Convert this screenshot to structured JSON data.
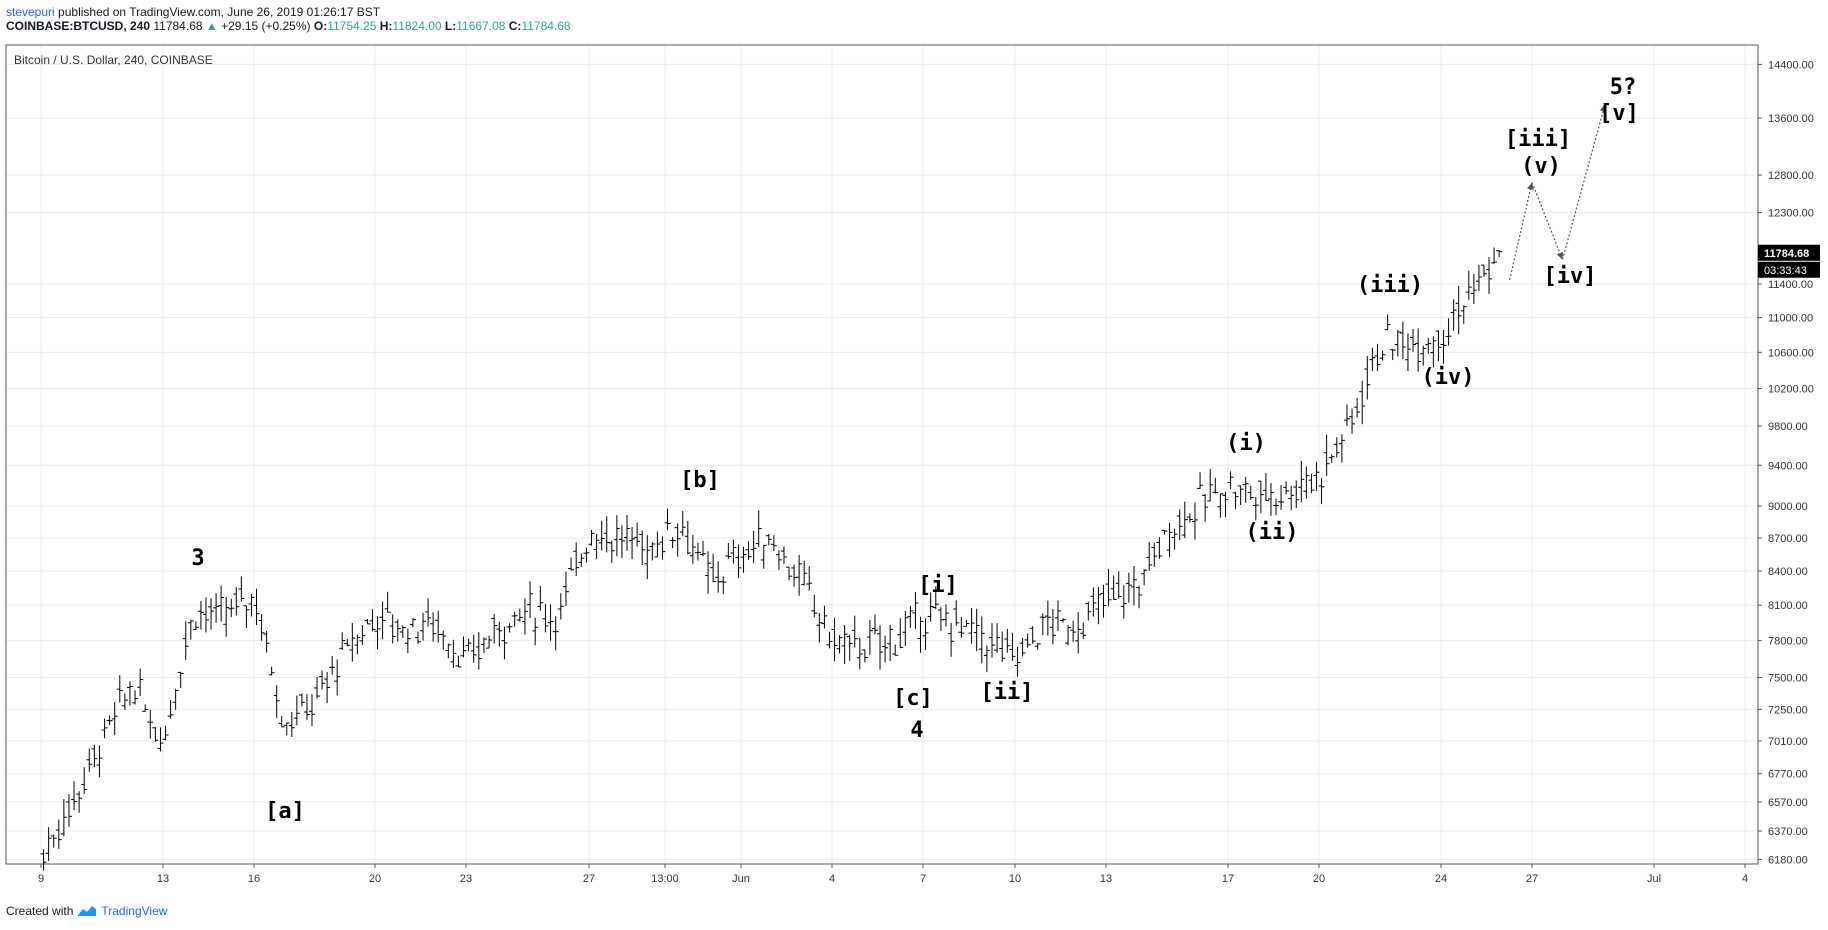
{
  "header": {
    "author": "stevepuri",
    "published": "published on TradingView.com, June 26, 2019 01:26:17 BST",
    "symbol": "COINBASE:BTCUSD, 240",
    "last": "11784.68",
    "change": "+29.15 (+0.25%)",
    "o_label": "O:",
    "o_val": "11754.25",
    "h_label": "H:",
    "h_val": "11824.00",
    "l_label": "L:",
    "l_val": "11667.08",
    "c_label": "C:",
    "c_val": "11784.68"
  },
  "chart_data": {
    "type": "ohlc-bar",
    "title": "Bitcoin / U.S. Dollar, 240, COINBASE",
    "y_ticks": [
      6180,
      6370,
      6570,
      6770,
      7010,
      7250,
      7500,
      7800,
      8100,
      8400,
      8700,
      9000,
      9400,
      9800,
      10200,
      10600,
      11000,
      11400,
      12300,
      12800,
      13600,
      14400
    ],
    "y_range": [
      6150,
      14700
    ],
    "y_scale": "log",
    "x_ticks": [
      "9",
      "13",
      "16",
      "20",
      "23",
      "27",
      "13:00",
      "Jun",
      "4",
      "7",
      "10",
      "13",
      "17",
      "20",
      "24",
      "27",
      "Jul",
      "4"
    ],
    "last_price_label": "11784.68",
    "countdown_label": "03:33:43",
    "anchors": [
      {
        "date": "May 9",
        "price": 6180
      },
      {
        "date": "May 10",
        "price": 6550
      },
      {
        "date": "May 11",
        "price": 7000
      },
      {
        "date": "May 12",
        "price": 7450
      },
      {
        "date": "May 13",
        "price": 7000
      },
      {
        "date": "May 14",
        "price": 8050
      },
      {
        "date": "May 15",
        "price": 8000
      },
      {
        "date": "May 16",
        "price": 8200
      },
      {
        "date": "May 17",
        "price": 7150
      },
      {
        "date": "May 18",
        "price": 7300
      },
      {
        "date": "May 19",
        "price": 7700
      },
      {
        "date": "May 20",
        "price": 8000
      },
      {
        "date": "May 21",
        "price": 7900
      },
      {
        "date": "May 22",
        "price": 7950
      },
      {
        "date": "May 23",
        "price": 7600
      },
      {
        "date": "May 24",
        "price": 7900
      },
      {
        "date": "May 25",
        "price": 8050
      },
      {
        "date": "May 26",
        "price": 8000
      },
      {
        "date": "May 27",
        "price": 8750
      },
      {
        "date": "May 28",
        "price": 8700
      },
      {
        "date": "May 29",
        "price": 8600
      },
      {
        "date": "May 30",
        "price": 8850
      },
      {
        "date": "May 31",
        "price": 8300
      },
      {
        "date": "Jun 1",
        "price": 8550
      },
      {
        "date": "Jun 2",
        "price": 8700
      },
      {
        "date": "Jun 3",
        "price": 8300
      },
      {
        "date": "Jun 4",
        "price": 7800
      },
      {
        "date": "Jun 5",
        "price": 7750
      },
      {
        "date": "Jun 6",
        "price": 7800
      },
      {
        "date": "Jun 7",
        "price": 8000
      },
      {
        "date": "Jun 8",
        "price": 7950
      },
      {
        "date": "Jun 9",
        "price": 7800
      },
      {
        "date": "Jun 10",
        "price": 7650
      },
      {
        "date": "Jun 11",
        "price": 7950
      },
      {
        "date": "Jun 12",
        "price": 7900
      },
      {
        "date": "Jun 13",
        "price": 8150
      },
      {
        "date": "Jun 14",
        "price": 8250
      },
      {
        "date": "Jun 15",
        "price": 8750
      },
      {
        "date": "Jun 16",
        "price": 9000
      },
      {
        "date": "Jun 17",
        "price": 9200
      },
      {
        "date": "Jun 18",
        "price": 9100
      },
      {
        "date": "Jun 19",
        "price": 9150
      },
      {
        "date": "Jun 20",
        "price": 9300
      },
      {
        "date": "Jun 21",
        "price": 9800
      },
      {
        "date": "Jun 22",
        "price": 10700
      },
      {
        "date": "Jun 23",
        "price": 10700
      },
      {
        "date": "Jun 24",
        "price": 10800
      },
      {
        "date": "Jun 25",
        "price": 11300
      },
      {
        "date": "Jun 26",
        "price": 11784.68
      }
    ],
    "projection": [
      {
        "date": "Jun 26",
        "price": 11450
      },
      {
        "date": "Jun 27",
        "price": 12700
      },
      {
        "date": "Jun 28",
        "price": 11700
      },
      {
        "date": "Jun 29",
        "price": 13800
      }
    ],
    "wave_labels": [
      {
        "text": "3"
      },
      {
        "text": "[a]"
      },
      {
        "text": "[b]"
      },
      {
        "text": "[c]"
      },
      {
        "text": "4"
      },
      {
        "text": "[i]"
      },
      {
        "text": "[ii]"
      },
      {
        "text": "(i)"
      },
      {
        "text": "(ii)"
      },
      {
        "text": "(iii)"
      },
      {
        "text": "(iv)"
      },
      {
        "text": "[iii]"
      },
      {
        "text": "(v)"
      },
      {
        "text": "[iv]"
      },
      {
        "text": "5?"
      },
      {
        "text": "[v]"
      }
    ]
  },
  "footer": {
    "created_with": "Created with",
    "brand": "TradingView"
  }
}
